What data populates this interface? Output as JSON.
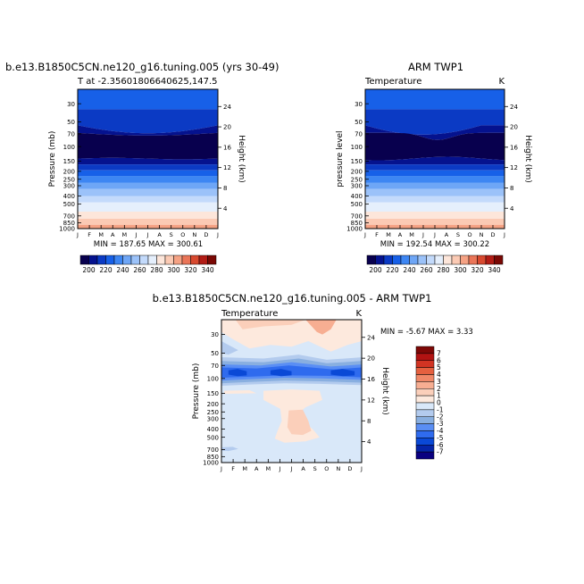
{
  "colors": {
    "temp_scale": [
      "#08004e",
      "#05128e",
      "#0b3ac4",
      "#1760e8",
      "#3d86f3",
      "#6ea6f6",
      "#9bc2f9",
      "#c3dafb",
      "#e5effc",
      "#fde6da",
      "#fbcab4",
      "#f5a284",
      "#ea7558",
      "#d8492f",
      "#b21c15",
      "#7a0804"
    ],
    "diff_scale": [
      "#0a0080",
      "#0525a8",
      "#0a49d6",
      "#2f6bee",
      "#5a8ef4",
      "#89afe0",
      "#b3cbee",
      "#d9e8f9",
      "#fde9dd",
      "#fbcfba",
      "#f7ae92",
      "#f08868",
      "#e5603f",
      "#d13423",
      "#b21312",
      "#7e0806"
    ]
  },
  "panels": {
    "model_title": "b.e13.B1850C5CN.ne120_g16.tuning.005 (yrs 30-49)",
    "model_subtitle": "T at -2.35601806640625,147.5",
    "model_minmax": "MIN = 187.65  MAX = 300.61",
    "obs_title": "ARM TWP1",
    "obs_subtitle_left": "Temperature",
    "obs_subtitle_right": "K",
    "obs_minmax": "MIN = 192.54  MAX = 300.22",
    "diff_title": "b.e13.B1850C5CN.ne120_g16.tuning.005 - ARM TWP1",
    "diff_subtitle_left": "Temperature",
    "diff_subtitle_right": "K",
    "diff_minmax": "MIN =   -5.67  MAX =    3.33"
  },
  "chart_data": [
    {
      "type": "heatmap",
      "panel": "model",
      "title": "b.e13.B1850C5CN.ne120_g16.tuning.005 (yrs 30-49)",
      "subtitle": "T at -2.35601806640625,147.5",
      "xlabel": "",
      "ylabel": "Pressure (mb)",
      "ylabel_right": "Height (km)",
      "x": [
        "J",
        "F",
        "M",
        "A",
        "M",
        "J",
        "J",
        "A",
        "S",
        "O",
        "N",
        "D",
        "J"
      ],
      "y_pressure_ticks": [
        30,
        50,
        70,
        100,
        150,
        200,
        250,
        300,
        400,
        500,
        700,
        850,
        1000
      ],
      "y_height_ticks": [
        24,
        20,
        16,
        12,
        8,
        4
      ],
      "ylim": [
        1000,
        20
      ],
      "colorbar_ticks": [
        200,
        220,
        240,
        260,
        280,
        300,
        320,
        340
      ],
      "min": 187.65,
      "max": 300.61
    },
    {
      "type": "heatmap",
      "panel": "obs",
      "title": "ARM TWP1",
      "subtitle": "Temperature",
      "units": "K",
      "ylabel": "pressure level",
      "ylabel_right": "Height (km)",
      "x": [
        "J",
        "F",
        "M",
        "A",
        "M",
        "J",
        "J",
        "A",
        "S",
        "O",
        "N",
        "D",
        "J"
      ],
      "y_pressure_ticks": [
        30,
        50,
        70,
        100,
        150,
        200,
        250,
        300,
        400,
        500,
        700,
        850,
        1000
      ],
      "y_height_ticks": [
        24,
        20,
        16,
        12,
        8,
        4
      ],
      "ylim": [
        1000,
        20
      ],
      "colorbar_ticks": [
        200,
        220,
        240,
        260,
        280,
        300,
        320,
        340
      ],
      "min": 192.54,
      "max": 300.22
    },
    {
      "type": "heatmap",
      "panel": "diff",
      "title": "b.e13.B1850C5CN.ne120_g16.tuning.005 - ARM TWP1",
      "subtitle": "Temperature",
      "units": "K",
      "ylabel": "Pressure (mb)",
      "ylabel_right": "Height (km)",
      "x": [
        "J",
        "F",
        "M",
        "A",
        "M",
        "J",
        "J",
        "A",
        "S",
        "O",
        "N",
        "D",
        "J"
      ],
      "y_pressure_ticks": [
        30,
        50,
        70,
        100,
        150,
        200,
        250,
        300,
        400,
        500,
        700,
        850,
        1000
      ],
      "y_height_ticks": [
        24,
        20,
        16,
        12,
        8,
        4
      ],
      "ylim": [
        1000,
        20
      ],
      "colorbar_ticks": [
        7,
        6,
        5,
        4,
        3,
        2,
        1,
        0,
        -1,
        -2,
        -3,
        -4,
        -5,
        -6,
        -7
      ],
      "min": -5.67,
      "max": 3.33
    }
  ]
}
